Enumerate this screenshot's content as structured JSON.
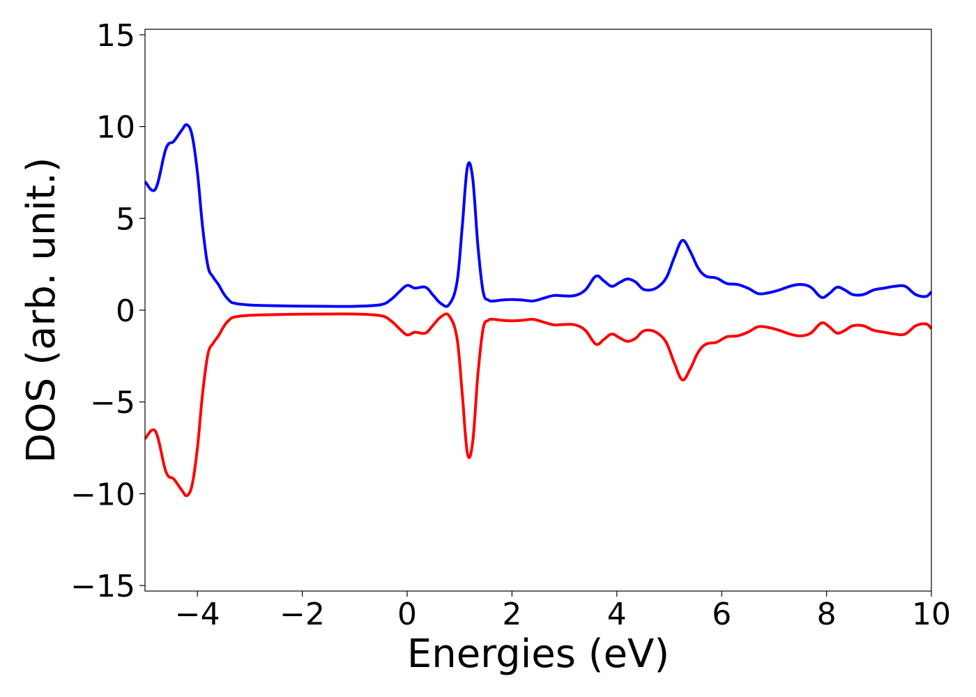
{
  "chart_data": {
    "type": "line",
    "title": "",
    "xlabel": "Energies (eV)",
    "ylabel": "DOS (arb. unit.)",
    "xlim": [
      -5,
      10
    ],
    "ylim": [
      -15.3,
      15.3
    ],
    "grid": false,
    "legend": "none",
    "xticks": [
      -4,
      -2,
      0,
      2,
      4,
      6,
      8,
      10
    ],
    "xtick_labels": [
      "−4",
      "−2",
      "0",
      "2",
      "4",
      "6",
      "8",
      "10"
    ],
    "yticks": [
      15,
      10,
      5,
      0,
      -5,
      -10,
      -15
    ],
    "ytick_labels": [
      "15",
      "10",
      "5",
      "0",
      "−5",
      "−10",
      "−15"
    ],
    "series": [
      {
        "color": "#0000ff",
        "x": [
          -5.0,
          -4.8,
          -4.6,
          -4.45,
          -4.3,
          -4.2,
          -4.1,
          -4.0,
          -3.9,
          -3.8,
          -3.7,
          -3.6,
          -3.5,
          -3.4,
          -3.3,
          -3.0,
          -2.5,
          -2.0,
          -1.5,
          -1.0,
          -0.5,
          -0.3,
          -0.15,
          0.0,
          0.15,
          0.35,
          0.5,
          0.65,
          0.8,
          0.95,
          1.05,
          1.15,
          1.25,
          1.35,
          1.45,
          1.55,
          1.65,
          1.8,
          2.0,
          2.2,
          2.4,
          2.6,
          2.8,
          3.0,
          3.2,
          3.4,
          3.6,
          3.75,
          3.9,
          4.05,
          4.2,
          4.35,
          4.5,
          4.65,
          4.8,
          4.95,
          5.1,
          5.25,
          5.4,
          5.55,
          5.7,
          5.9,
          6.1,
          6.3,
          6.5,
          6.7,
          6.9,
          7.1,
          7.3,
          7.5,
          7.7,
          7.9,
          8.05,
          8.2,
          8.35,
          8.5,
          8.7,
          8.9,
          9.1,
          9.3,
          9.5,
          9.7,
          9.9,
          10.0
        ],
        "y": [
          7.0,
          6.6,
          8.8,
          9.2,
          9.8,
          10.1,
          9.5,
          7.5,
          4.5,
          2.4,
          1.8,
          1.4,
          0.9,
          0.55,
          0.38,
          0.28,
          0.24,
          0.22,
          0.21,
          0.21,
          0.3,
          0.6,
          1.0,
          1.35,
          1.2,
          1.25,
          0.8,
          0.35,
          0.3,
          1.5,
          4.5,
          7.8,
          7.2,
          3.5,
          1.0,
          0.55,
          0.5,
          0.55,
          0.58,
          0.55,
          0.5,
          0.65,
          0.8,
          0.78,
          0.8,
          1.1,
          1.85,
          1.6,
          1.3,
          1.5,
          1.7,
          1.55,
          1.15,
          1.1,
          1.3,
          1.8,
          2.9,
          3.8,
          3.2,
          2.3,
          1.85,
          1.75,
          1.45,
          1.4,
          1.2,
          0.9,
          0.95,
          1.1,
          1.3,
          1.4,
          1.25,
          0.7,
          0.9,
          1.25,
          1.1,
          0.85,
          0.85,
          1.1,
          1.2,
          1.3,
          1.3,
          0.85,
          0.75,
          1.0
        ]
      },
      {
        "color": "#ff0000",
        "x": [
          -5.0,
          -4.8,
          -4.6,
          -4.45,
          -4.3,
          -4.2,
          -4.1,
          -4.0,
          -3.9,
          -3.8,
          -3.7,
          -3.6,
          -3.5,
          -3.4,
          -3.3,
          -3.0,
          -2.5,
          -2.0,
          -1.5,
          -1.0,
          -0.5,
          -0.3,
          -0.15,
          0.0,
          0.15,
          0.35,
          0.5,
          0.65,
          0.8,
          0.95,
          1.05,
          1.15,
          1.25,
          1.35,
          1.45,
          1.55,
          1.65,
          1.8,
          2.0,
          2.2,
          2.4,
          2.6,
          2.8,
          3.0,
          3.2,
          3.4,
          3.6,
          3.75,
          3.9,
          4.05,
          4.2,
          4.35,
          4.5,
          4.65,
          4.8,
          4.95,
          5.1,
          5.25,
          5.4,
          5.55,
          5.7,
          5.9,
          6.1,
          6.3,
          6.5,
          6.7,
          6.9,
          7.1,
          7.3,
          7.5,
          7.7,
          7.9,
          8.05,
          8.2,
          8.35,
          8.5,
          8.7,
          8.9,
          9.1,
          9.3,
          9.5,
          9.7,
          9.9,
          10.0
        ],
        "y": [
          -7.0,
          -6.6,
          -8.8,
          -9.2,
          -9.8,
          -10.1,
          -9.5,
          -7.5,
          -4.5,
          -2.4,
          -1.8,
          -1.4,
          -0.9,
          -0.55,
          -0.38,
          -0.28,
          -0.24,
          -0.22,
          -0.21,
          -0.21,
          -0.3,
          -0.6,
          -1.0,
          -1.35,
          -1.2,
          -1.25,
          -0.8,
          -0.35,
          -0.3,
          -1.5,
          -4.5,
          -7.8,
          -7.2,
          -3.5,
          -1.0,
          -0.55,
          -0.5,
          -0.55,
          -0.58,
          -0.55,
          -0.5,
          -0.65,
          -0.8,
          -0.78,
          -0.8,
          -1.1,
          -1.85,
          -1.6,
          -1.3,
          -1.5,
          -1.7,
          -1.55,
          -1.15,
          -1.1,
          -1.3,
          -1.8,
          -2.9,
          -3.8,
          -3.2,
          -2.3,
          -1.85,
          -1.75,
          -1.45,
          -1.4,
          -1.2,
          -0.9,
          -0.95,
          -1.1,
          -1.3,
          -1.4,
          -1.25,
          -0.7,
          -0.9,
          -1.25,
          -1.1,
          -0.85,
          -0.85,
          -1.1,
          -1.2,
          -1.3,
          -1.3,
          -0.85,
          -0.75,
          -1.0
        ]
      }
    ]
  }
}
